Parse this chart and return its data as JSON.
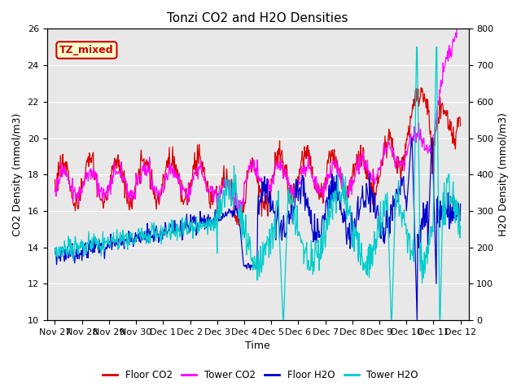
{
  "title": "Tonzi CO2 and H2O Densities",
  "xlabel": "Time",
  "ylabel_left": "CO2 Density (mmol/m3)",
  "ylabel_right": "H2O Density (mmol/m3)",
  "ylim_left": [
    10,
    26
  ],
  "ylim_right": [
    0,
    800
  ],
  "yticks_left": [
    10,
    12,
    14,
    16,
    18,
    20,
    22,
    24,
    26
  ],
  "yticks_right": [
    0,
    100,
    200,
    300,
    400,
    500,
    600,
    700,
    800
  ],
  "colors": {
    "floor_co2": "#dd0000",
    "tower_co2": "#ff00ff",
    "floor_h2o": "#0000cc",
    "tower_h2o": "#00cccc"
  },
  "annotation_text": "TZ_mixed",
  "annotation_color": "#cc0000",
  "annotation_bg": "#ffffcc",
  "plot_bg": "#e8e8e8",
  "fig_bg": "#ffffff",
  "x_tick_labels": [
    "Nov 27",
    "Nov 28",
    "Nov 29",
    "Nov 30",
    "Dec 1",
    "Dec 2",
    "Dec 3",
    "Dec 4",
    "Dec 5",
    "Dec 6",
    "Dec 7",
    "Dec 8",
    "Dec 9",
    "Dec 10",
    "Dec 11",
    "Dec 12"
  ],
  "legend_labels": [
    "Floor CO2",
    "Tower CO2",
    "Floor H2O",
    "Tower H2O"
  ],
  "title_fontsize": 11,
  "axis_label_fontsize": 9,
  "tick_fontsize": 8,
  "linewidth": 0.9
}
